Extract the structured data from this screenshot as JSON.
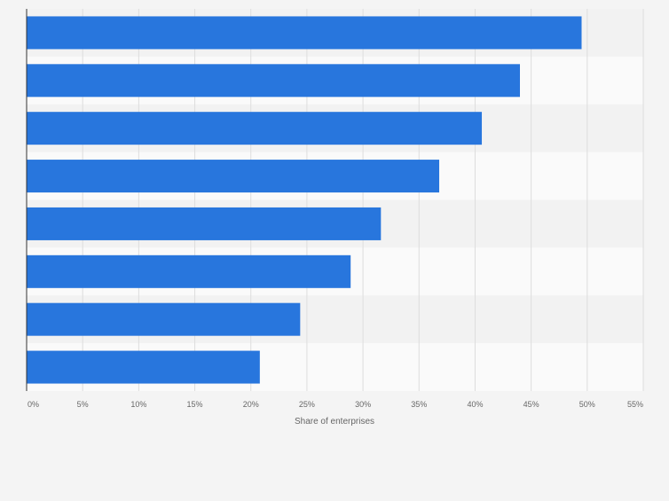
{
  "chart_data": {
    "type": "bar",
    "orientation": "horizontal",
    "categories": [
      "",
      "",
      "",
      "",
      "",
      "",
      "",
      ""
    ],
    "series": [
      {
        "values": [
          49.5,
          44.0,
          40.6,
          36.8,
          31.6,
          28.9,
          24.4,
          20.8
        ]
      }
    ],
    "x_ticks": [
      "0%",
      "5%",
      "10%",
      "15%",
      "20%",
      "25%",
      "30%",
      "35%",
      "40%",
      "45%",
      "50%",
      "55%"
    ],
    "xlabel": "Share of enterprises",
    "ylabel": "",
    "xlim": [
      0,
      55
    ],
    "grid": true,
    "bar_color": "#2876dd",
    "band_colors": [
      "#f2f2f2",
      "#fafafa"
    ]
  }
}
